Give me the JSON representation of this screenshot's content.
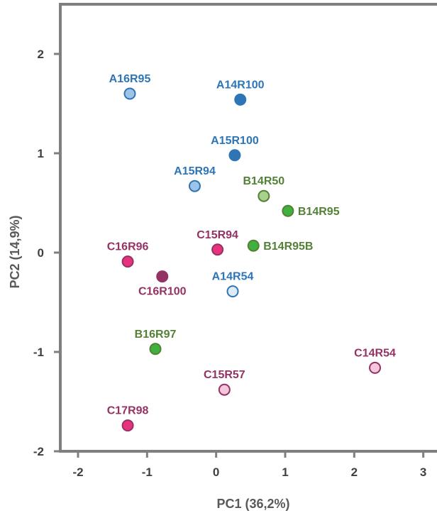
{
  "chart_data": {
    "type": "scatter",
    "title": "",
    "xlabel": "PC1 (36,2%)",
    "ylabel": "PC2 (14,9%)",
    "xlim": [
      -2.25,
      3.1
    ],
    "ylim": [
      -2.0,
      2.45
    ],
    "xticks": [
      {
        "value": -2,
        "label": "-2"
      },
      {
        "value": -1,
        "label": "-1"
      },
      {
        "value": 0,
        "label": "0"
      },
      {
        "value": 1,
        "label": "1"
      },
      {
        "value": 2,
        "label": "2"
      },
      {
        "value": 3,
        "label": "3"
      }
    ],
    "yticks": [
      {
        "value": 2,
        "label": "2"
      },
      {
        "value": 1,
        "label": "1"
      },
      {
        "value": 0,
        "label": "0"
      },
      {
        "value": -1,
        "label": "-1"
      },
      {
        "value": -2,
        "label": "-2"
      }
    ],
    "grid": false,
    "legend": "none",
    "label_colors": {
      "A": "#2e75b6",
      "B": "#538135",
      "C": "#943264"
    },
    "points": [
      {
        "name": "A16R95",
        "x": -1.25,
        "y": 1.6,
        "color": "#9dc3e6",
        "group": "A",
        "label_pos": "above"
      },
      {
        "name": "A14R100",
        "x": 0.35,
        "y": 1.54,
        "color": "#2e75b6",
        "group": "A",
        "label_pos": "above"
      },
      {
        "name": "A15R100",
        "x": 0.27,
        "y": 0.98,
        "color": "#2e75b6",
        "group": "A",
        "label_pos": "above"
      },
      {
        "name": "A15R94",
        "x": -0.31,
        "y": 0.67,
        "color": "#9dc3e6",
        "group": "A",
        "label_pos": "above"
      },
      {
        "name": "A14R54",
        "x": 0.24,
        "y": -0.39,
        "color": "#deebf7",
        "group": "A",
        "label_pos": "above"
      },
      {
        "name": "B14R50",
        "x": 0.69,
        "y": 0.57,
        "color": "#a9d18e",
        "group": "B",
        "label_pos": "above"
      },
      {
        "name": "B14R95",
        "x": 1.04,
        "y": 0.42,
        "color": "#3fb13c",
        "group": "B",
        "label_pos": "right"
      },
      {
        "name": "B14R95B",
        "x": 0.54,
        "y": 0.07,
        "color": "#3fb13c",
        "group": "B",
        "label_pos": "right"
      },
      {
        "name": "B16R97",
        "x": -0.88,
        "y": -0.97,
        "color": "#3fb13c",
        "group": "B",
        "label_pos": "above"
      },
      {
        "name": "C15R94",
        "x": 0.02,
        "y": 0.03,
        "color": "#e8327e",
        "group": "C",
        "label_pos": "above"
      },
      {
        "name": "C16R96",
        "x": -1.28,
        "y": -0.09,
        "color": "#e8327e",
        "group": "C",
        "label_pos": "above"
      },
      {
        "name": "C16R100",
        "x": -0.78,
        "y": -0.24,
        "color": "#943264",
        "group": "C",
        "label_pos": "below"
      },
      {
        "name": "C14R54",
        "x": 2.3,
        "y": -1.16,
        "color": "#f6c7dc",
        "group": "C",
        "label_pos": "above"
      },
      {
        "name": "C15R57",
        "x": 0.12,
        "y": -1.38,
        "color": "#f6c7dc",
        "group": "C",
        "label_pos": "above"
      },
      {
        "name": "C17R98",
        "x": -1.28,
        "y": -1.74,
        "color": "#e8327e",
        "group": "C",
        "label_pos": "above"
      }
    ]
  }
}
